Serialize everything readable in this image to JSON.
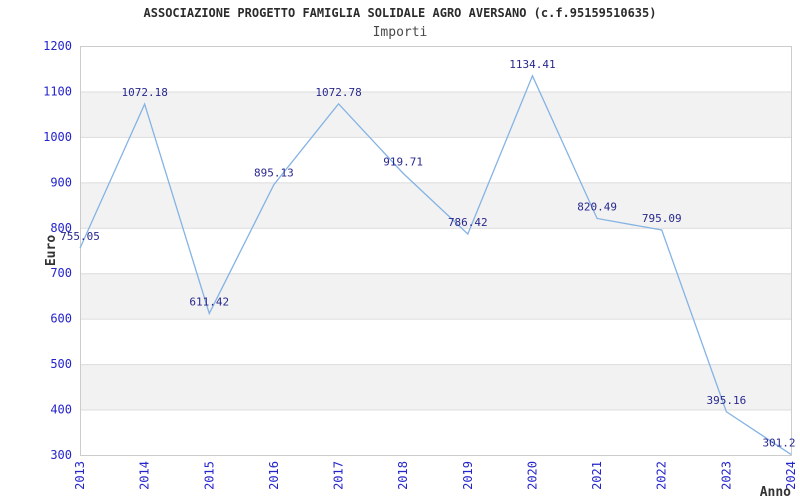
{
  "chart_data": {
    "type": "line",
    "title": "ASSOCIAZIONE PROGETTO FAMIGLIA SOLIDALE AGRO AVERSANO (c.f.95159510635)",
    "subtitle": "Importi",
    "xlabel": "Anno",
    "ylabel": "Euro",
    "categories": [
      "2013",
      "2014",
      "2015",
      "2016",
      "2017",
      "2018",
      "2019",
      "2020",
      "2021",
      "2022",
      "2023",
      "2024"
    ],
    "values": [
      755.05,
      1072.18,
      611.42,
      895.13,
      1072.78,
      919.71,
      786.42,
      1134.41,
      820.49,
      795.09,
      395.16,
      301.2
    ],
    "value_labels": [
      "755.05",
      "1072.18",
      "611.42",
      "895.13",
      "1072.78",
      "919.71",
      "786.42",
      "1134.41",
      "820.49",
      "795.09",
      "395.16",
      "301.2"
    ],
    "ylim": [
      300,
      1200
    ],
    "ytick_step": 100,
    "grid": true,
    "legend": "none",
    "colors": {
      "line": "#85b3e4",
      "tick_label": "#2424cc",
      "data_label": "#28288e",
      "band": "#f2f2f2",
      "gridline": "#dcdcdc",
      "border": "#cccccc",
      "title": "#2b2b2b",
      "subtitle": "#4a4a4a",
      "axis_title": "#333333",
      "background": "#ffffff"
    }
  }
}
